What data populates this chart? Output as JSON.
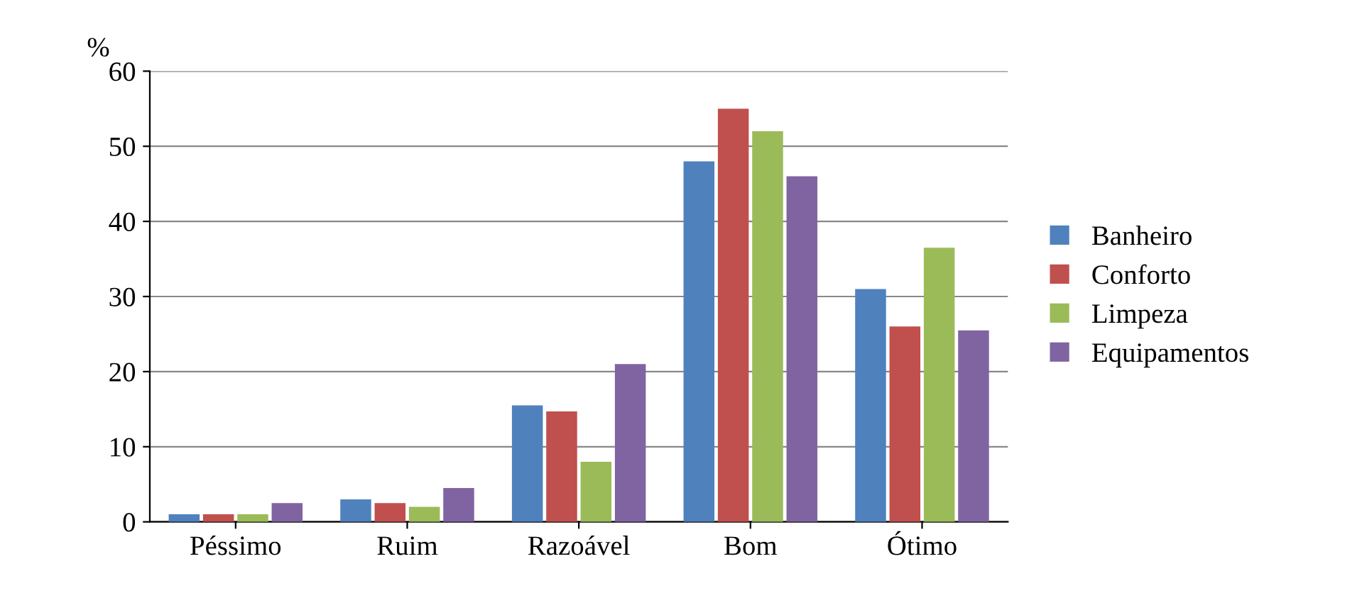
{
  "chart_data": {
    "type": "bar",
    "ylabel": "%",
    "categories": [
      "Péssimo",
      "Ruim",
      "Razoável",
      "Bom",
      "Ótimo"
    ],
    "series": [
      {
        "name": "Banheiro",
        "color": "#4f81bd",
        "values": [
          1,
          3,
          15.5,
          48,
          31
        ]
      },
      {
        "name": "Conforto",
        "color": "#c0504d",
        "values": [
          1,
          2.5,
          14.7,
          55,
          26
        ]
      },
      {
        "name": "Limpeza",
        "color": "#9bbb59",
        "values": [
          1,
          2,
          8,
          52,
          36.5
        ]
      },
      {
        "name": "Equipamentos",
        "color": "#8064a2",
        "values": [
          2.5,
          4.5,
          21,
          46,
          25.5
        ]
      }
    ],
    "ylim": [
      0,
      60
    ],
    "yticks": [
      0,
      10,
      20,
      30,
      40,
      50,
      60
    ],
    "grid": "y",
    "legend": "right"
  }
}
